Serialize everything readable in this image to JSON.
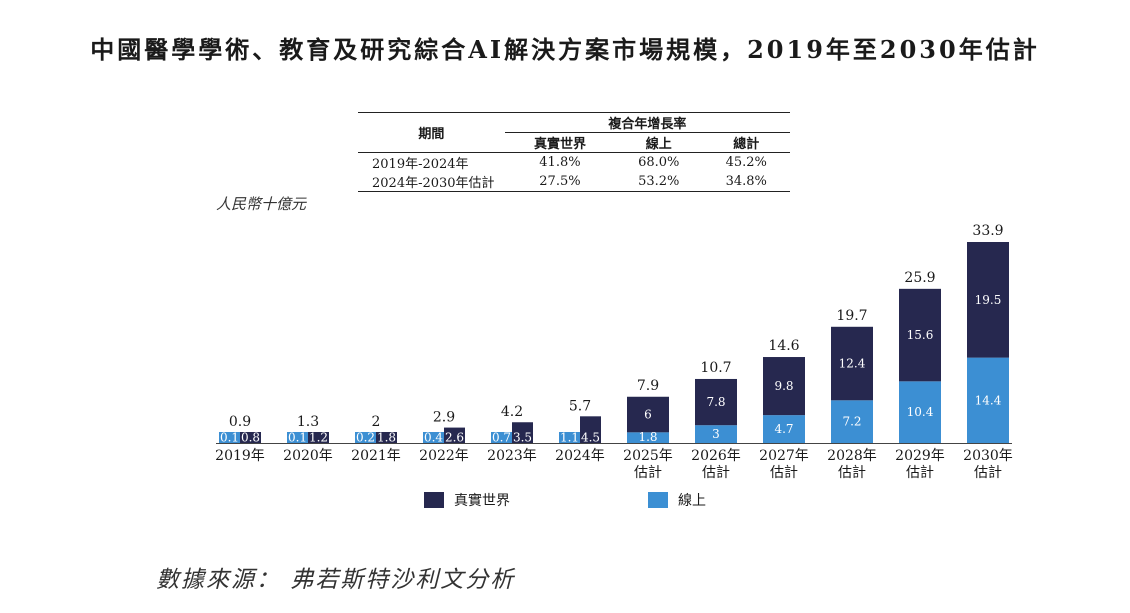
{
  "title": "中國醫學學術、教育及研究綜合AI解決方案市場規模，2019年至2030年估計",
  "unit_label": "人民幣十億元",
  "source": "數據來源：  弗若斯特沙利文分析",
  "cagr_table": {
    "period_header": "期間",
    "group_header": "複合年增長率",
    "columns": [
      "真實世界",
      "線上",
      "總計"
    ],
    "rows": [
      {
        "period": "2019年-2024年",
        "values": [
          "41.8%",
          "68.0%",
          "45.2%"
        ]
      },
      {
        "period": "2024年-2030年估計",
        "values": [
          "27.5%",
          "53.2%",
          "34.8%"
        ]
      }
    ]
  },
  "chart_data": {
    "type": "bar",
    "stacked": true,
    "categories": [
      "2019年",
      "2020年",
      "2021年",
      "2022年",
      "2023年",
      "2024年",
      "2025年\n估計",
      "2026年\n估計",
      "2027年\n估計",
      "2028年\n估計",
      "2029年\n估計",
      "2030年\n估計"
    ],
    "series": [
      {
        "name": "線上",
        "color": "#3c8fd3",
        "values": [
          0.1,
          0.1,
          0.2,
          0.4,
          0.7,
          1.1,
          1.8,
          3.0,
          4.7,
          7.2,
          10.4,
          14.4
        ]
      },
      {
        "name": "真實世界",
        "color": "#26284f",
        "values": [
          0.8,
          1.2,
          1.8,
          2.6,
          3.5,
          4.5,
          6.0,
          7.8,
          9.8,
          12.4,
          15.6,
          19.5
        ]
      }
    ],
    "totals": [
      0.9,
      1.3,
      2.0,
      2.9,
      4.2,
      5.7,
      7.9,
      10.7,
      14.6,
      19.7,
      25.9,
      33.9
    ],
    "ylim": [
      0,
      33.9
    ],
    "legend": [
      {
        "name": "真實世界",
        "color": "#26284f"
      },
      {
        "name": "線上",
        "color": "#3c8fd3"
      }
    ]
  }
}
